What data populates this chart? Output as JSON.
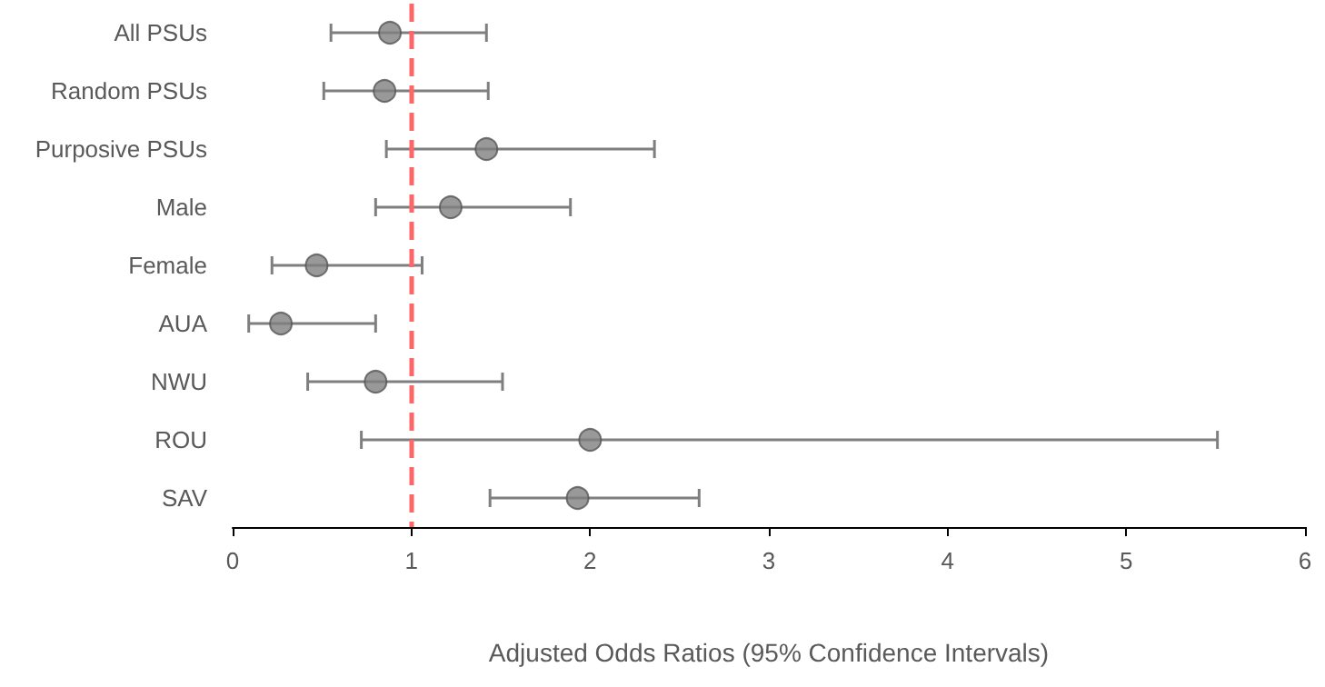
{
  "chart_data": {
    "type": "scatter",
    "orientation": "horizontal",
    "xlabel": "Adjusted Odds Ratios (95% Confidence Intervals)",
    "categories": [
      "All PSUs",
      "Random PSUs",
      "Purposive PSUs",
      "Male",
      "Female",
      "AUA",
      "NWU",
      "ROU",
      "SAV"
    ],
    "color": "#7f7f7f",
    "values": [
      0.88,
      0.85,
      1.42,
      1.22,
      0.47,
      0.27,
      0.8,
      2.0,
      1.93
    ],
    "errors": [
      [
        0.55,
        1.42
      ],
      [
        0.51,
        1.43
      ],
      [
        0.86,
        2.36
      ],
      [
        0.8,
        1.89
      ],
      [
        0.22,
        1.06
      ],
      [
        0.09,
        0.8
      ],
      [
        0.42,
        1.51
      ],
      [
        0.72,
        5.51
      ],
      [
        1.44,
        2.61
      ]
    ],
    "xlim": [
      0,
      6
    ],
    "xticks": [
      0,
      1,
      2,
      3,
      4,
      5,
      6
    ],
    "marker": "circle",
    "grid": false,
    "ref_lines": [
      {
        "axis": "x",
        "value": 1,
        "color": "#ff6666",
        "line_style": "dashed"
      }
    ]
  }
}
